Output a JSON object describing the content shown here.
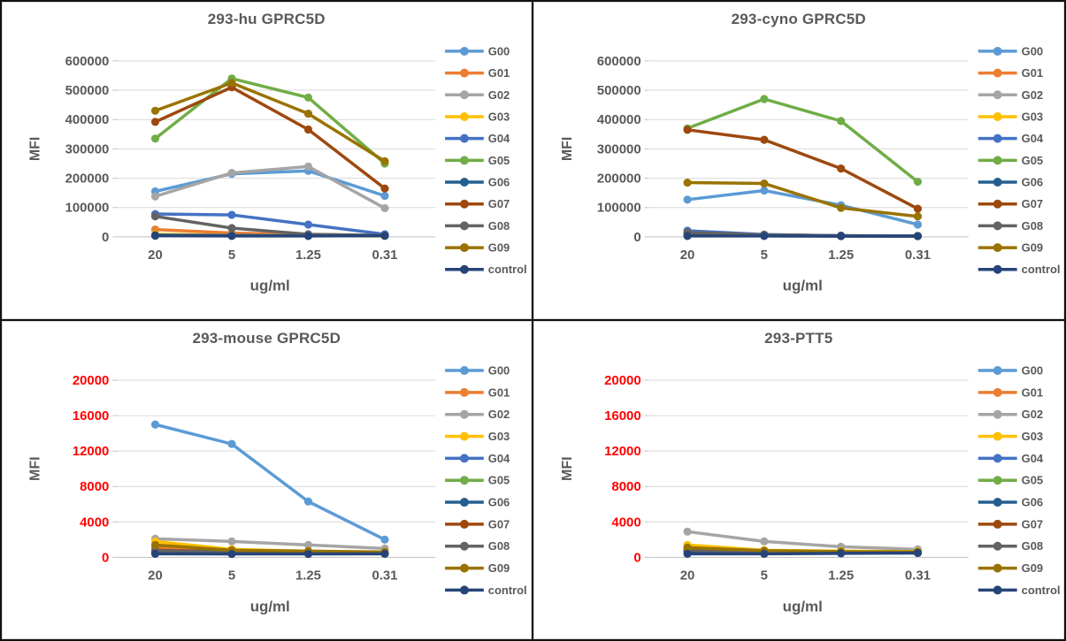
{
  "page": {
    "background": "#FFFFFF",
    "frame_color": "#111111",
    "panel_border_color": "#D9D9D9"
  },
  "palette": {
    "G00": "#5B9BD5",
    "G01": "#ED7D31",
    "G02": "#A5A5A5",
    "G03": "#FFC000",
    "G04": "#4472C4",
    "G05": "#70AD47",
    "G06": "#255E91",
    "G07": "#9E480E",
    "G08": "#636363",
    "G09": "#997300",
    "control": "#264478"
  },
  "style": {
    "gridline_color": "#D9D9D9",
    "axis_line_color": "#BFBFBF",
    "text_color": "#595959",
    "legend_text_color": "#595959"
  },
  "chart_data": [
    {
      "type": "line",
      "title": "293-hu GPRC5D",
      "xlabel": "ug/ml",
      "ylabel": "MFI",
      "categories": [
        "20",
        "5",
        "1.25",
        "0.31"
      ],
      "ylim": [
        0,
        600000
      ],
      "ytick_step": 100000,
      "ytick_color": "#595959",
      "grid": true,
      "legend_position": "right",
      "series": [
        {
          "name": "G00",
          "values": [
            155000,
            215000,
            225000,
            140000
          ]
        },
        {
          "name": "G01",
          "values": [
            25000,
            13000,
            8000,
            5000
          ]
        },
        {
          "name": "G02",
          "values": [
            138000,
            218000,
            240000,
            98000
          ]
        },
        {
          "name": "G03",
          "values": [
            9000,
            6000,
            4000,
            3000
          ]
        },
        {
          "name": "G04",
          "values": [
            78000,
            75000,
            42000,
            9000
          ]
        },
        {
          "name": "G05",
          "values": [
            335000,
            540000,
            475000,
            250000
          ]
        },
        {
          "name": "G06",
          "values": [
            6000,
            5000,
            4000,
            4000
          ]
        },
        {
          "name": "G07",
          "values": [
            392000,
            510000,
            366000,
            165000
          ]
        },
        {
          "name": "G08",
          "values": [
            70000,
            30000,
            9000,
            5000
          ]
        },
        {
          "name": "G09",
          "values": [
            430000,
            525000,
            420000,
            258000
          ]
        },
        {
          "name": "control",
          "values": [
            4000,
            3000,
            3000,
            4000
          ]
        }
      ]
    },
    {
      "type": "line",
      "title": "293-cyno GPRC5D",
      "xlabel": "ug/ml",
      "ylabel": "MFI",
      "categories": [
        "20",
        "5",
        "1.25",
        "0.31"
      ],
      "ylim": [
        0,
        600000
      ],
      "ytick_step": 100000,
      "ytick_color": "#595959",
      "grid": true,
      "legend_position": "right",
      "series": [
        {
          "name": "G00",
          "values": [
            127000,
            158000,
            108000,
            42000
          ]
        },
        {
          "name": "G01",
          "values": [
            10000,
            6000,
            4000,
            3000
          ]
        },
        {
          "name": "G02",
          "values": [
            13000,
            7000,
            4000,
            3000
          ]
        },
        {
          "name": "G03",
          "values": [
            8000,
            5000,
            3000,
            3000
          ]
        },
        {
          "name": "G04",
          "values": [
            21000,
            8000,
            4000,
            3000
          ]
        },
        {
          "name": "G05",
          "values": [
            370000,
            470000,
            395000,
            188000
          ]
        },
        {
          "name": "G06",
          "values": [
            7000,
            4000,
            3000,
            3000
          ]
        },
        {
          "name": "G07",
          "values": [
            365000,
            331000,
            233000,
            96000
          ]
        },
        {
          "name": "G08",
          "values": [
            15000,
            7000,
            4000,
            3000
          ]
        },
        {
          "name": "G09",
          "values": [
            185000,
            182000,
            99000,
            70000
          ]
        },
        {
          "name": "control",
          "values": [
            3000,
            3000,
            2500,
            2500
          ]
        }
      ]
    },
    {
      "type": "line",
      "title": "293-mouse GPRC5D",
      "xlabel": "ug/ml",
      "ylabel": "MFI",
      "categories": [
        "20",
        "5",
        "1.25",
        "0.31"
      ],
      "ylim": [
        0,
        20000
      ],
      "ytick_step": 4000,
      "ytick_color": "#FF0000",
      "grid": true,
      "legend_position": "right",
      "series": [
        {
          "name": "G00",
          "values": [
            15000,
            12800,
            6300,
            2000
          ]
        },
        {
          "name": "G01",
          "values": [
            1100,
            700,
            600,
            500
          ]
        },
        {
          "name": "G02",
          "values": [
            2100,
            1800,
            1400,
            1000
          ]
        },
        {
          "name": "G03",
          "values": [
            1800,
            900,
            700,
            600
          ]
        },
        {
          "name": "G04",
          "values": [
            700,
            600,
            500,
            450
          ]
        },
        {
          "name": "G05",
          "values": [
            600,
            500,
            450,
            400
          ]
        },
        {
          "name": "G06",
          "values": [
            650,
            550,
            500,
            450
          ]
        },
        {
          "name": "G07",
          "values": [
            800,
            650,
            550,
            500
          ]
        },
        {
          "name": "G08",
          "values": [
            750,
            600,
            550,
            500
          ]
        },
        {
          "name": "G09",
          "values": [
            1400,
            800,
            700,
            600
          ]
        },
        {
          "name": "control",
          "values": [
            400,
            380,
            380,
            400
          ]
        }
      ]
    },
    {
      "type": "line",
      "title": "293-PTT5",
      "xlabel": "ug/ml",
      "ylabel": "MFI",
      "categories": [
        "20",
        "5",
        "1.25",
        "0.31"
      ],
      "ylim": [
        0,
        20000
      ],
      "ytick_step": 4000,
      "ytick_color": "#FF0000",
      "grid": true,
      "legend_position": "right",
      "series": [
        {
          "name": "G00",
          "values": [
            800,
            650,
            600,
            600
          ]
        },
        {
          "name": "G01",
          "values": [
            900,
            700,
            600,
            600
          ]
        },
        {
          "name": "G02",
          "values": [
            2900,
            1800,
            1200,
            900
          ]
        },
        {
          "name": "G03",
          "values": [
            1400,
            800,
            700,
            650
          ]
        },
        {
          "name": "G04",
          "values": [
            700,
            600,
            550,
            550
          ]
        },
        {
          "name": "G05",
          "values": [
            650,
            550,
            500,
            500
          ]
        },
        {
          "name": "G06",
          "values": [
            700,
            550,
            500,
            500
          ]
        },
        {
          "name": "G07",
          "values": [
            850,
            650,
            600,
            550
          ]
        },
        {
          "name": "G08",
          "values": [
            800,
            650,
            600,
            550
          ]
        },
        {
          "name": "G09",
          "values": [
            1100,
            750,
            650,
            600
          ]
        },
        {
          "name": "control",
          "values": [
            400,
            400,
            450,
            500
          ]
        }
      ]
    }
  ]
}
